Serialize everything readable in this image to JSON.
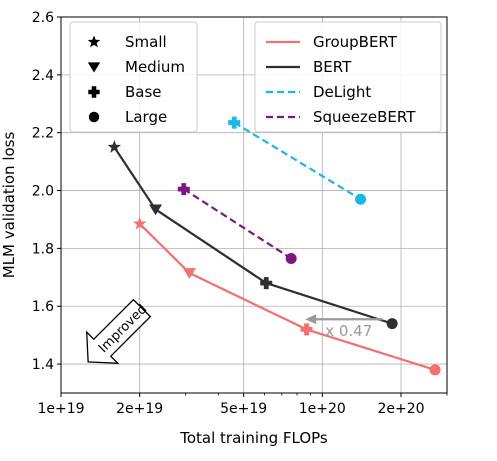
{
  "chart_data": {
    "type": "line",
    "xlabel": "Total training FLOPs",
    "ylabel": "MLM validation loss",
    "xscale": "log",
    "xlim": [
      1e+19,
      3e+20
    ],
    "ylim": [
      1.3,
      2.6
    ],
    "xticks": [
      {
        "value": 1e+19,
        "label": "1e+19"
      },
      {
        "value": 2e+19,
        "label": "2e+19"
      },
      {
        "value": 5e+19,
        "label": "5e+19"
      },
      {
        "value": 1e+20,
        "label": "1e+20"
      },
      {
        "value": 2e+20,
        "label": "2e+20"
      }
    ],
    "yticks": [
      {
        "value": 1.4,
        "label": "1.4"
      },
      {
        "value": 1.6,
        "label": "1.6"
      },
      {
        "value": 1.8,
        "label": "1.8"
      },
      {
        "value": 2.0,
        "label": "2.0"
      },
      {
        "value": 2.2,
        "label": "2.2"
      },
      {
        "value": 2.4,
        "label": "2.4"
      },
      {
        "value": 2.6,
        "label": "2.6"
      }
    ],
    "grid": true,
    "series": [
      {
        "name": "GroupBERT",
        "color": "#f4716e",
        "dash": "solid",
        "points": [
          {
            "x": 2e+19,
            "y": 1.885,
            "size": "Small"
          },
          {
            "x": 3.1e+19,
            "y": 1.715,
            "size": "Medium"
          },
          {
            "x": 8.7e+19,
            "y": 1.52,
            "size": "Base"
          },
          {
            "x": 2.7e+20,
            "y": 1.38,
            "size": "Large"
          }
        ]
      },
      {
        "name": "BERT",
        "color": "#2e2e33",
        "dash": "solid",
        "points": [
          {
            "x": 1.6e+19,
            "y": 2.15,
            "size": "Small"
          },
          {
            "x": 2.3e+19,
            "y": 1.935,
            "size": "Medium"
          },
          {
            "x": 6.1e+19,
            "y": 1.68,
            "size": "Base"
          },
          {
            "x": 1.85e+20,
            "y": 1.54,
            "size": "Large"
          }
        ]
      },
      {
        "name": "DeLight",
        "color": "#19b8ec",
        "dash": "dashed",
        "points": [
          {
            "x": 4.6e+19,
            "y": 2.235,
            "size": "Base"
          },
          {
            "x": 1.4e+20,
            "y": 1.97,
            "size": "Large"
          }
        ]
      },
      {
        "name": "SqueezeBERT",
        "color": "#7a1782",
        "dash": "dashed",
        "points": [
          {
            "x": 2.95e+19,
            "y": 2.005,
            "size": "Base"
          },
          {
            "x": 7.6e+19,
            "y": 1.765,
            "size": "Large"
          }
        ]
      }
    ],
    "marker_legend": [
      {
        "label": "Small",
        "marker": "star"
      },
      {
        "label": "Medium",
        "marker": "triangle-down"
      },
      {
        "label": "Base",
        "marker": "plus"
      },
      {
        "label": "Large",
        "marker": "circle"
      }
    ],
    "series_legend_position": "top-right",
    "marker_legend_position": "top-left",
    "annotations": [
      {
        "text": "x 0.47",
        "color": "#999999",
        "arrow_from": {
          "x": 1.7e+20,
          "y": 1.555
        },
        "arrow_to": {
          "x": 8.6e+19,
          "y": 1.555
        }
      },
      {
        "text": "Improved",
        "kind": "direction-arrow",
        "direction": "down-left"
      }
    ]
  }
}
